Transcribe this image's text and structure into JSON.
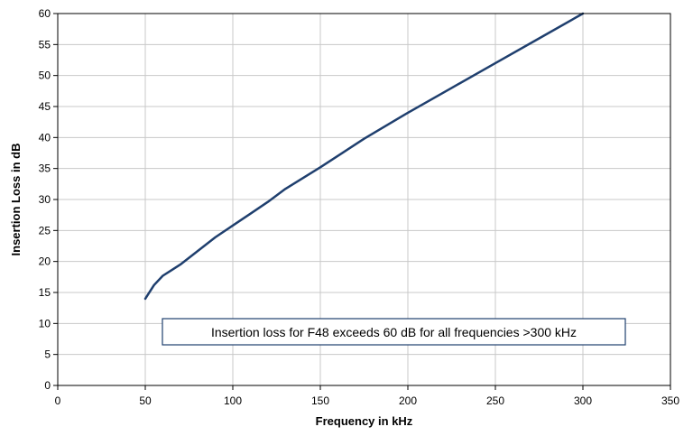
{
  "chart_data": {
    "type": "line",
    "title": "",
    "xlabel": "Frequency in kHz",
    "ylabel": "Insertion Loss in dB",
    "xlim": [
      0,
      350
    ],
    "ylim": [
      0,
      60
    ],
    "x_ticks": [
      0,
      50,
      100,
      150,
      200,
      250,
      300,
      350
    ],
    "y_ticks": [
      0,
      5,
      10,
      15,
      20,
      25,
      30,
      35,
      40,
      45,
      50,
      55,
      60
    ],
    "grid": true,
    "legend": "none",
    "series": [
      {
        "color": "#1f3f6e",
        "x": [
          50,
          55,
          60,
          65,
          70,
          80,
          90,
          100,
          110,
          120,
          130,
          150,
          175,
          200,
          225,
          250,
          275,
          300
        ],
        "y": [
          14.0,
          16.2,
          17.7,
          18.6,
          19.5,
          21.7,
          23.9,
          25.8,
          27.7,
          29.6,
          31.7,
          35.2,
          39.8,
          44.0,
          48.0,
          52.0,
          56.0,
          60.0
        ]
      }
    ],
    "annotations": [
      {
        "text": "Insertion loss for F48 exceeds 60 dB for all frequencies >300 kHz"
      }
    ]
  }
}
